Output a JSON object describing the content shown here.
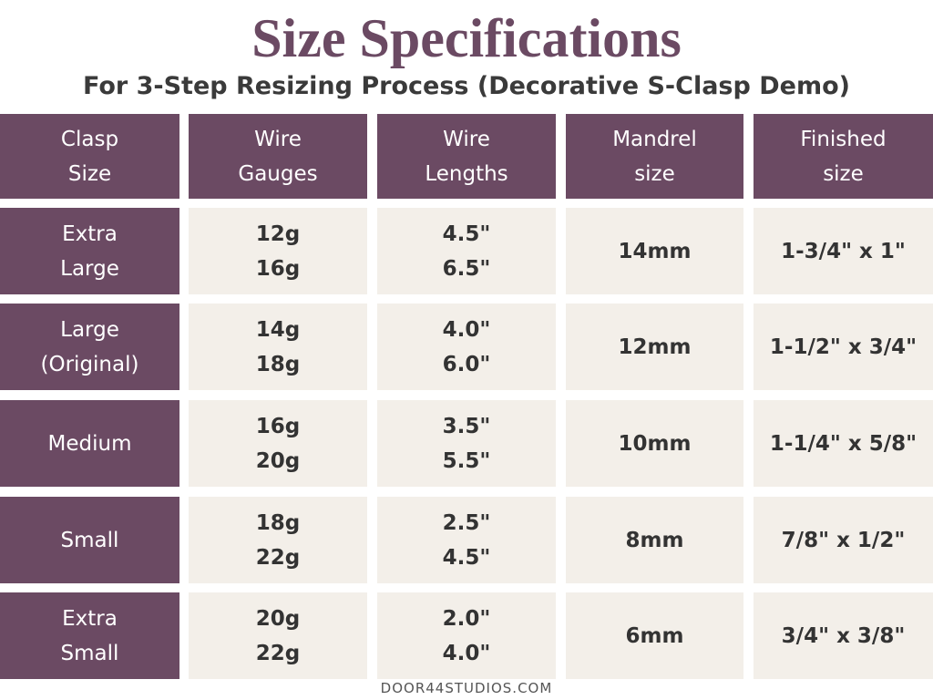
{
  "header": {
    "title": "Size Specifications",
    "subtitle": "For 3-Step Resizing Process (Decorative S-Clasp Demo)"
  },
  "table": {
    "columns": [
      [
        "Clasp",
        "Size"
      ],
      [
        "Wire",
        "Gauges"
      ],
      [
        "Wire",
        "Lengths"
      ],
      [
        "Mandrel",
        "size"
      ],
      [
        "Finished",
        "size"
      ]
    ],
    "rows": [
      [
        [
          "Extra",
          "Large"
        ],
        [
          "12g",
          "16g"
        ],
        [
          "4.5\"",
          "6.5\""
        ],
        [
          "14mm"
        ],
        [
          "1-3/4\" x 1\""
        ]
      ],
      [
        [
          "Large",
          "(Original)"
        ],
        [
          "14g",
          "18g"
        ],
        [
          "4.0\"",
          "6.0\""
        ],
        [
          "12mm"
        ],
        [
          "1-1/2\" x 3/4\""
        ]
      ],
      [
        [
          "Medium"
        ],
        [
          "16g",
          "20g"
        ],
        [
          "3.5\"",
          "5.5\""
        ],
        [
          "10mm"
        ],
        [
          "1-1/4\" x 5/8\""
        ]
      ],
      [
        [
          "Small"
        ],
        [
          "18g",
          "22g"
        ],
        [
          "2.5\"",
          "4.5\""
        ],
        [
          "8mm"
        ],
        [
          "7/8\" x 1/2\""
        ]
      ],
      [
        [
          "Extra",
          "Small"
        ],
        [
          "20g",
          "22g"
        ],
        [
          "2.0\"",
          "4.0\""
        ],
        [
          "6mm"
        ],
        [
          "3/4\" x 3/8\""
        ]
      ]
    ]
  },
  "footer": {
    "credit": "DOOR44STUDIOS.COM"
  }
}
